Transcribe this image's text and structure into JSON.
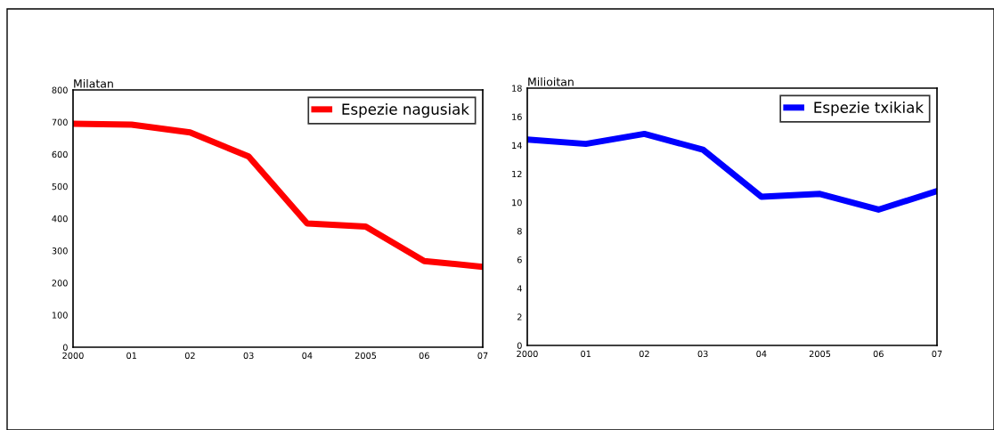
{
  "chart_data": [
    {
      "type": "line",
      "ylabel": "Milatan",
      "categories": [
        "2000",
        "01",
        "02",
        "03",
        "04",
        "2005",
        "06",
        "07"
      ],
      "series": [
        {
          "name": "Espezie nagusiak",
          "color": "#ff0000",
          "values": [
            695,
            692,
            668,
            593,
            385,
            375,
            268,
            250
          ]
        }
      ],
      "ylim": [
        0,
        800
      ],
      "yticks": [
        0,
        100,
        200,
        300,
        400,
        500,
        600,
        700,
        800
      ],
      "legend": "top right"
    },
    {
      "type": "line",
      "ylabel": "Milioitan",
      "categories": [
        "2000",
        "01",
        "02",
        "03",
        "04",
        "2005",
        "06",
        "07"
      ],
      "series": [
        {
          "name": "Espezie txikiak",
          "color": "#0000ff",
          "values": [
            14.4,
            14.1,
            14.8,
            13.7,
            10.4,
            10.6,
            9.5,
            10.8
          ]
        }
      ],
      "ylim": [
        0,
        18
      ],
      "yticks": [
        0,
        2,
        4,
        6,
        8,
        10,
        12,
        14,
        16,
        18
      ],
      "legend": "top right"
    }
  ]
}
